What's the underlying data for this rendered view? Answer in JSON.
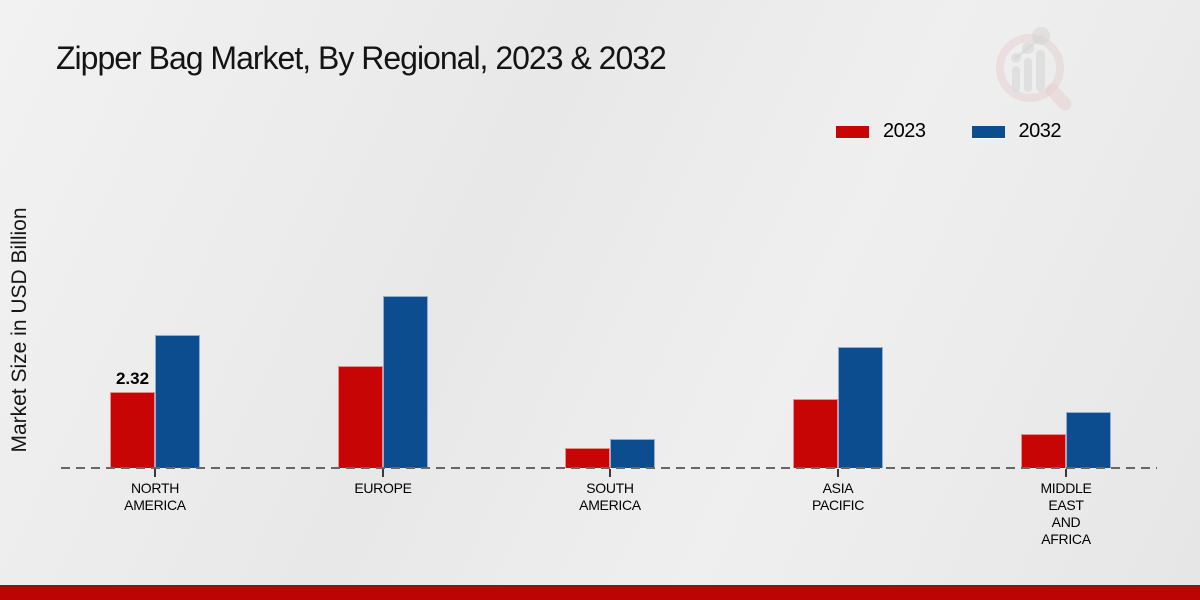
{
  "chart_data": {
    "type": "bar",
    "title": "Zipper Bag Market, By Regional, 2023 & 2032",
    "ylabel": "Market Size in USD Billion",
    "xlabel": "",
    "categories": [
      "NORTH AMERICA",
      "EUROPE",
      "SOUTH AMERICA",
      "ASIA PACIFIC",
      "MIDDLE EAST AND AFRICA"
    ],
    "series": [
      {
        "name": "2023",
        "color": "#c80505",
        "values": [
          2.32,
          3.1,
          0.61,
          2.1,
          1.04
        ]
      },
      {
        "name": "2032",
        "color": "#0c4d8f",
        "values": [
          4.05,
          5.25,
          0.88,
          3.7,
          1.7
        ]
      }
    ],
    "data_labels": [
      {
        "series": "2023",
        "category": "NORTH AMERICA",
        "text": "2.32"
      }
    ],
    "unit": "USD Billion",
    "legend_position": "top-right",
    "grid": false,
    "baseline_style": "dashed",
    "y_axis_ticks_visible": false
  },
  "colors": {
    "series_2023": "#c80505",
    "series_2032": "#0c4d8f",
    "background": "#eaeaea",
    "bottom_band": "#bc0404",
    "baseline_dash": "#676767"
  }
}
